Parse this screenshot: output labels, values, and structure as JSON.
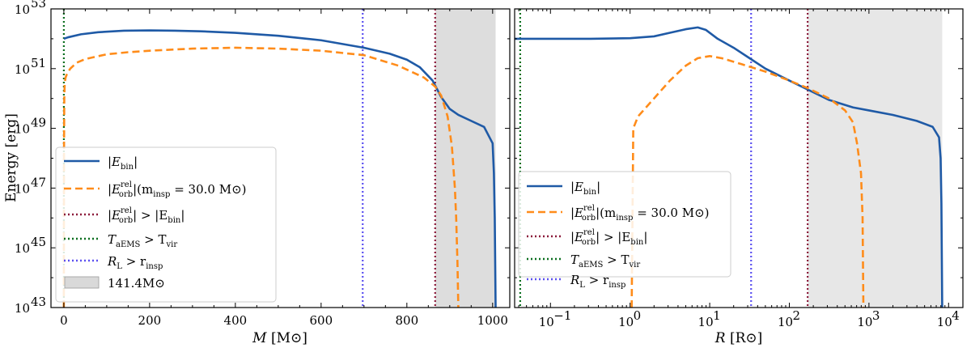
{
  "chart_data": [
    {
      "type": "line",
      "panel": "left",
      "xscale": "linear",
      "yscale": "log",
      "xlim": [
        -30,
        1040
      ],
      "ylim_exp": [
        43,
        53
      ],
      "xticks": [
        0,
        200,
        400,
        600,
        800,
        1000
      ],
      "xtick_labels": [
        "0",
        "200",
        "400",
        "600",
        "800",
        "1000"
      ],
      "yticks_exp": [
        43,
        45,
        47,
        49,
        51,
        53
      ],
      "ytick_labels": [
        "10",
        "10",
        "10",
        "10",
        "10",
        "10"
      ],
      "ytick_exps": [
        "43",
        "45",
        "47",
        "49",
        "51",
        "53"
      ],
      "xlabel": "M [M⊙]",
      "xlabel_main": "M",
      "xlabel_unit": "[M⊙]",
      "ylabel": "Energy [erg]",
      "shaded_region": [
        866,
        1007
      ],
      "series": [
        {
          "name": "|E_bin|",
          "color": "#1f5aa6",
          "style": "solid",
          "x": [
            0,
            10,
            40,
            80,
            140,
            200,
            260,
            320,
            400,
            500,
            600,
            700,
            760,
            800,
            830,
            860,
            880,
            900,
            920,
            950,
            980,
            1000,
            1003,
            1005,
            1007
          ],
          "y": [
            52.0,
            52.05,
            52.15,
            52.22,
            52.27,
            52.28,
            52.27,
            52.25,
            52.2,
            52.1,
            51.95,
            51.7,
            51.5,
            51.3,
            51.05,
            50.6,
            50.05,
            49.65,
            49.45,
            49.25,
            49.05,
            48.5,
            47.5,
            46.0,
            43.0
          ]
        },
        {
          "name": "|E_orb^rel| (m_insp = 30.0 M⊙)",
          "color": "#ff8c1a",
          "style": "dashed",
          "x": [
            0,
            0.5,
            1,
            2,
            4,
            8,
            15,
            30,
            50,
            100,
            150,
            200,
            300,
            400,
            500,
            600,
            700,
            780,
            840,
            866,
            880,
            895,
            905,
            912,
            915,
            918,
            920
          ],
          "y": [
            43.0,
            48.5,
            50.0,
            50.5,
            50.7,
            50.85,
            51.0,
            51.2,
            51.32,
            51.48,
            51.55,
            51.6,
            51.67,
            51.7,
            51.67,
            51.6,
            51.45,
            51.1,
            50.7,
            50.4,
            50.1,
            49.4,
            48.4,
            47.0,
            46.0,
            44.5,
            43.0
          ]
        }
      ],
      "vlines": [
        {
          "name": "|E_orb^rel| > |E_bin|",
          "x": 866,
          "color": "#8b1a3a"
        },
        {
          "name": "T_aEMS > T_vir",
          "x": 0,
          "color": "#0a6e1e"
        },
        {
          "name": "R_L > r_insp",
          "x": 697,
          "color": "#5a4ff0"
        }
      ]
    },
    {
      "type": "line",
      "panel": "right",
      "xscale": "log",
      "yscale": "log",
      "xlim_exp": [
        -1.45,
        4.18
      ],
      "ylim_exp": [
        43,
        53
      ],
      "xticks_exp": [
        -1,
        0,
        1,
        2,
        3,
        4
      ],
      "xtick_labels": [
        "10",
        "10",
        "10",
        "10",
        "10",
        "10"
      ],
      "xtick_exps": [
        "−1",
        "0",
        "1",
        "2",
        "3",
        "4"
      ],
      "yticks_exp": [
        43,
        45,
        47,
        49,
        51,
        53
      ],
      "xlabel": "R [R⊙]",
      "xlabel_main": "R",
      "xlabel_unit": "[R⊙]",
      "shaded_region_exp": [
        2.23,
        3.92
      ],
      "series": [
        {
          "name": "|E_bin|",
          "color": "#1f5aa6",
          "style": "solid",
          "x_exp": [
            -1.45,
            -1.0,
            -0.5,
            0.0,
            0.3,
            0.5,
            0.7,
            0.85,
            0.95,
            1.1,
            1.3,
            1.5,
            1.7,
            2.0,
            2.23,
            2.5,
            2.8,
            3.0,
            3.3,
            3.6,
            3.8,
            3.88,
            3.9,
            3.91,
            3.92
          ],
          "y_exp": [
            52.0,
            52.0,
            52.0,
            52.02,
            52.08,
            52.2,
            52.32,
            52.38,
            52.3,
            52.0,
            51.7,
            51.35,
            51.0,
            50.6,
            50.3,
            49.95,
            49.7,
            49.6,
            49.45,
            49.25,
            49.05,
            48.7,
            48.0,
            46.5,
            43.0
          ]
        },
        {
          "name": "|E_orb^rel| (m_insp = 30.0 M⊙)",
          "color": "#ff8c1a",
          "style": "dashed",
          "x_exp": [
            0.02,
            0.04,
            0.1,
            0.3,
            0.5,
            0.7,
            0.85,
            1.0,
            1.15,
            1.4,
            1.7,
            2.0,
            2.23,
            2.5,
            2.7,
            2.8,
            2.85,
            2.9,
            2.92,
            2.93
          ],
          "y_exp": [
            43.0,
            49.0,
            49.4,
            50.0,
            50.6,
            51.1,
            51.35,
            51.42,
            51.35,
            51.15,
            50.9,
            50.6,
            50.35,
            50.0,
            49.6,
            49.2,
            48.5,
            47.5,
            46.0,
            43.0
          ]
        }
      ],
      "vlines": [
        {
          "name": "|E_orb^rel| > |E_bin|",
          "x_exp": 2.23,
          "color": "#8b1a3a"
        },
        {
          "name": "T_aEMS > T_vir",
          "x_exp": -1.38,
          "color": "#0a6e1e"
        },
        {
          "name": "R_L > r_insp",
          "x_exp": 1.52,
          "color": "#5a4ff0"
        }
      ]
    }
  ],
  "legend_left": {
    "ebin_main": "|E",
    "ebin_sub": "bin",
    "ebin_end": "|",
    "eorb_main": "|E",
    "eorb_sup": "rel",
    "eorb_sub": "orb",
    "eorb_mid": "|(m",
    "eorb_sub2": "insp",
    "eorb_end": " = 30.0 M⊙)",
    "cross_a": "|E",
    "cross_sup": "rel",
    "cross_sub": "orb",
    "cross_b": "| > |E",
    "cross_sub2": "bin",
    "cross_c": "|",
    "temp_a": "T",
    "temp_sub": "aEMS",
    "temp_b": " > T",
    "temp_sub2": "vir",
    "roche_a": "R",
    "roche_sub": "L",
    "roche_b": " > r",
    "roche_sub2": "insp",
    "shade_label": "141.4M⊙"
  },
  "legend_right": {
    "ebin_main": "|E",
    "ebin_sub": "bin",
    "ebin_end": "|",
    "eorb_main": "|E",
    "eorb_sup": "rel",
    "eorb_sub": "orb",
    "eorb_mid": "|(m",
    "eorb_sub2": "insp",
    "eorb_end": " = 30.0 M⊙)",
    "cross_a": "|E",
    "cross_sup": "rel",
    "cross_sub": "orb",
    "cross_b": "| > |E",
    "cross_sub2": "bin",
    "cross_c": "|",
    "temp_a": "T",
    "temp_sub": "aEMS",
    "temp_b": " > T",
    "temp_sub2": "vir",
    "roche_a": "R",
    "roche_sub": "L",
    "roche_b": " > r",
    "roche_sub2": "insp"
  },
  "ylabel": "Energy [erg]"
}
